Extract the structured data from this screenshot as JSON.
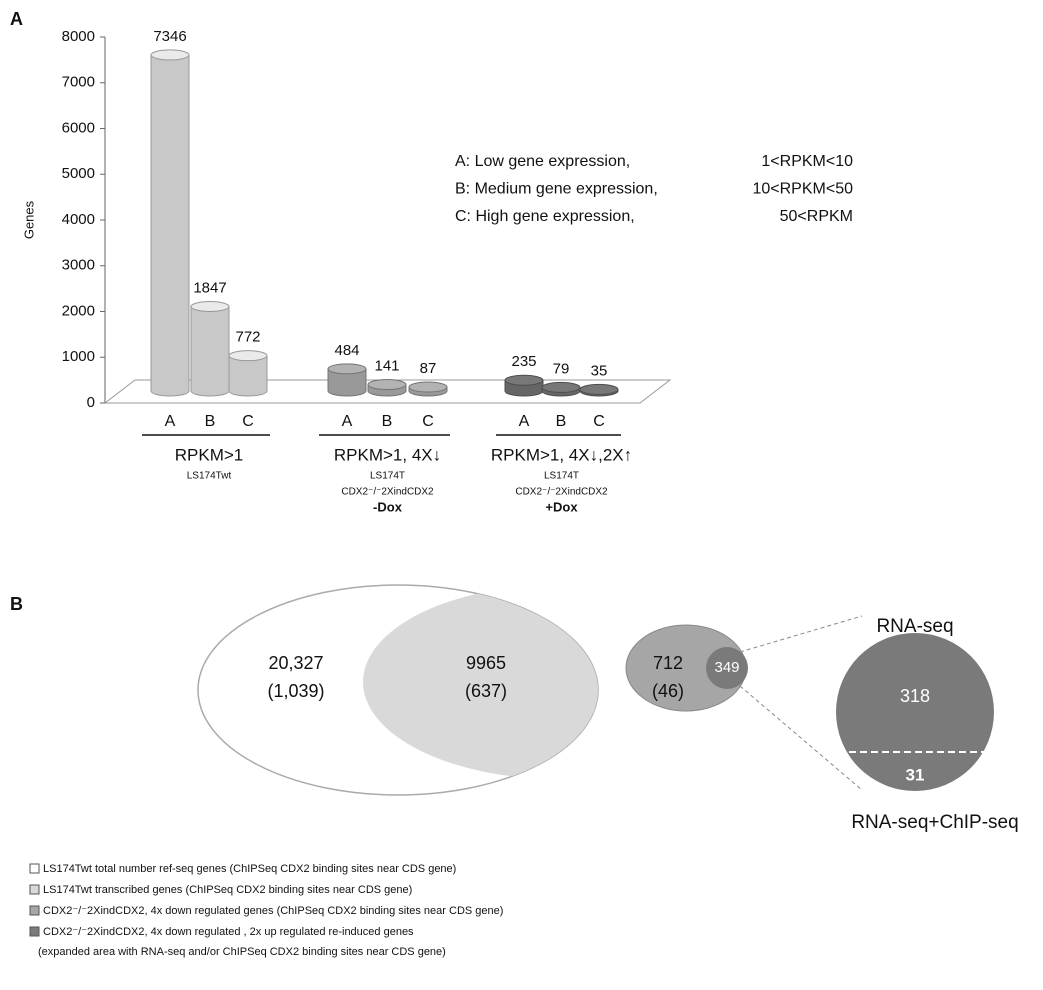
{
  "chart_data": {
    "type": "bar",
    "panel_label": "A",
    "ylabel": "Genes",
    "ylim": [
      0,
      8000
    ],
    "yticks": [
      0,
      1000,
      2000,
      3000,
      4000,
      5000,
      6000,
      7000,
      8000
    ],
    "groups": [
      {
        "label": "RPKM>1",
        "notes": [
          "LS174Twt"
        ],
        "color": "#d9d9d9",
        "categories": [
          "A",
          "B",
          "C"
        ],
        "values": [
          7346,
          1847,
          772
        ]
      },
      {
        "label": "RPKM>1, 4X↓",
        "notes": [
          "LS174T",
          "CDX2⁻/⁻2XindCDX2",
          "-Dox"
        ],
        "color": "#a6a6a6",
        "categories": [
          "A",
          "B",
          "C"
        ],
        "values": [
          484,
          141,
          87
        ]
      },
      {
        "label": "RPKM>1, 4X↓,2X↑",
        "notes": [
          "LS174T",
          "CDX2⁻/⁻2XindCDX2",
          "+Dox"
        ],
        "color": "#6f6f6f",
        "categories": [
          "A",
          "B",
          "C"
        ],
        "values": [
          235,
          79,
          35
        ]
      }
    ],
    "annotations": [
      {
        "text": "A: Low gene expression,",
        "range": "1<RPKM<10"
      },
      {
        "text": "B: Medium gene expression,",
        "range": "10<RPKM<50"
      },
      {
        "text": "C: High gene expression,",
        "range": "50<RPKM"
      }
    ]
  },
  "venn": {
    "panel_label": "B",
    "sets": [
      {
        "count": "20,327",
        "sub": "(1,039)"
      },
      {
        "count": "9965",
        "sub": "(637)"
      },
      {
        "count": "712",
        "sub": "(46)"
      },
      {
        "count": "349"
      }
    ],
    "zoom": {
      "title": "RNA-seq",
      "top": "318",
      "bottom": "31",
      "caption": "RNA-seq+ChIP-seq"
    },
    "legend": [
      "LS174Twt total  number ref-seq genes (ChIPSeq  CDX2 binding sites near CDS gene)",
      "LS174Twt transcribed genes (ChIPSeq  CDX2 binding sites near CDS gene)",
      "CDX2⁻/⁻2XindCDX2, 4x down regulated  genes  (ChIPSeq  CDX2 binding sites near CDS gene)",
      "CDX2⁻/⁻2XindCDX2, 4x down regulated , 2x up regulated re-induced genes",
      "(expanded  area with RNA-seq and/or ChIPSeq  CDX2 binding sites near CDS gene)"
    ]
  }
}
